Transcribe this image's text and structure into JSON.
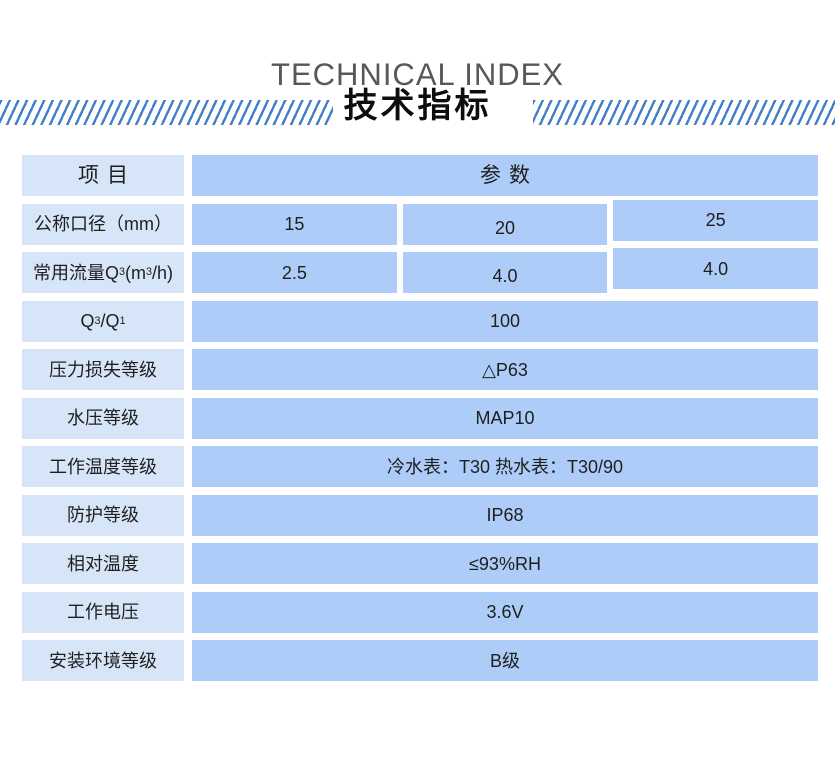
{
  "header": {
    "title_en": "TECHNICAL INDEX",
    "title_zh": "技术指标"
  },
  "colors": {
    "stripe_blue": "#4180c6",
    "label_cell_bg": "#d7e5f8",
    "value_cell_bg": "#adccf7",
    "title_en_gray": "#57585a"
  },
  "table": {
    "column_headers": {
      "item": "项目",
      "parameter": "参数"
    },
    "rows": [
      {
        "label": "公称口径（mm）",
        "values": [
          "15",
          "20",
          "25"
        ]
      },
      {
        "label_rich": [
          {
            "t": "常用流量Q"
          },
          {
            "t": "3",
            "s": "sub"
          },
          {
            "t": "(m"
          },
          {
            "t": "3",
            "s": "sup"
          },
          {
            "t": "/h)"
          }
        ],
        "values": [
          "2.5",
          "4.0",
          "4.0"
        ]
      },
      {
        "label_rich": [
          {
            "t": "Q"
          },
          {
            "t": "3",
            "s": "sub"
          },
          {
            "t": "/Q"
          },
          {
            "t": "1",
            "s": "sub"
          }
        ],
        "values": [
          "100"
        ]
      },
      {
        "label": "压力损失等级",
        "values": [
          "△P63"
        ]
      },
      {
        "label": "水压等级",
        "values": [
          "MAP10"
        ]
      },
      {
        "label": "工作温度等级",
        "values": [
          "冷水表：T30 热水表：T30/90"
        ]
      },
      {
        "label": "防护等级",
        "values": [
          "IP68"
        ]
      },
      {
        "label": "相对温度",
        "values": [
          "≤93%RH"
        ]
      },
      {
        "label": "工作电压",
        "values": [
          "3.6V"
        ]
      },
      {
        "label": "安装环境等级",
        "values": [
          "B级"
        ]
      }
    ]
  }
}
